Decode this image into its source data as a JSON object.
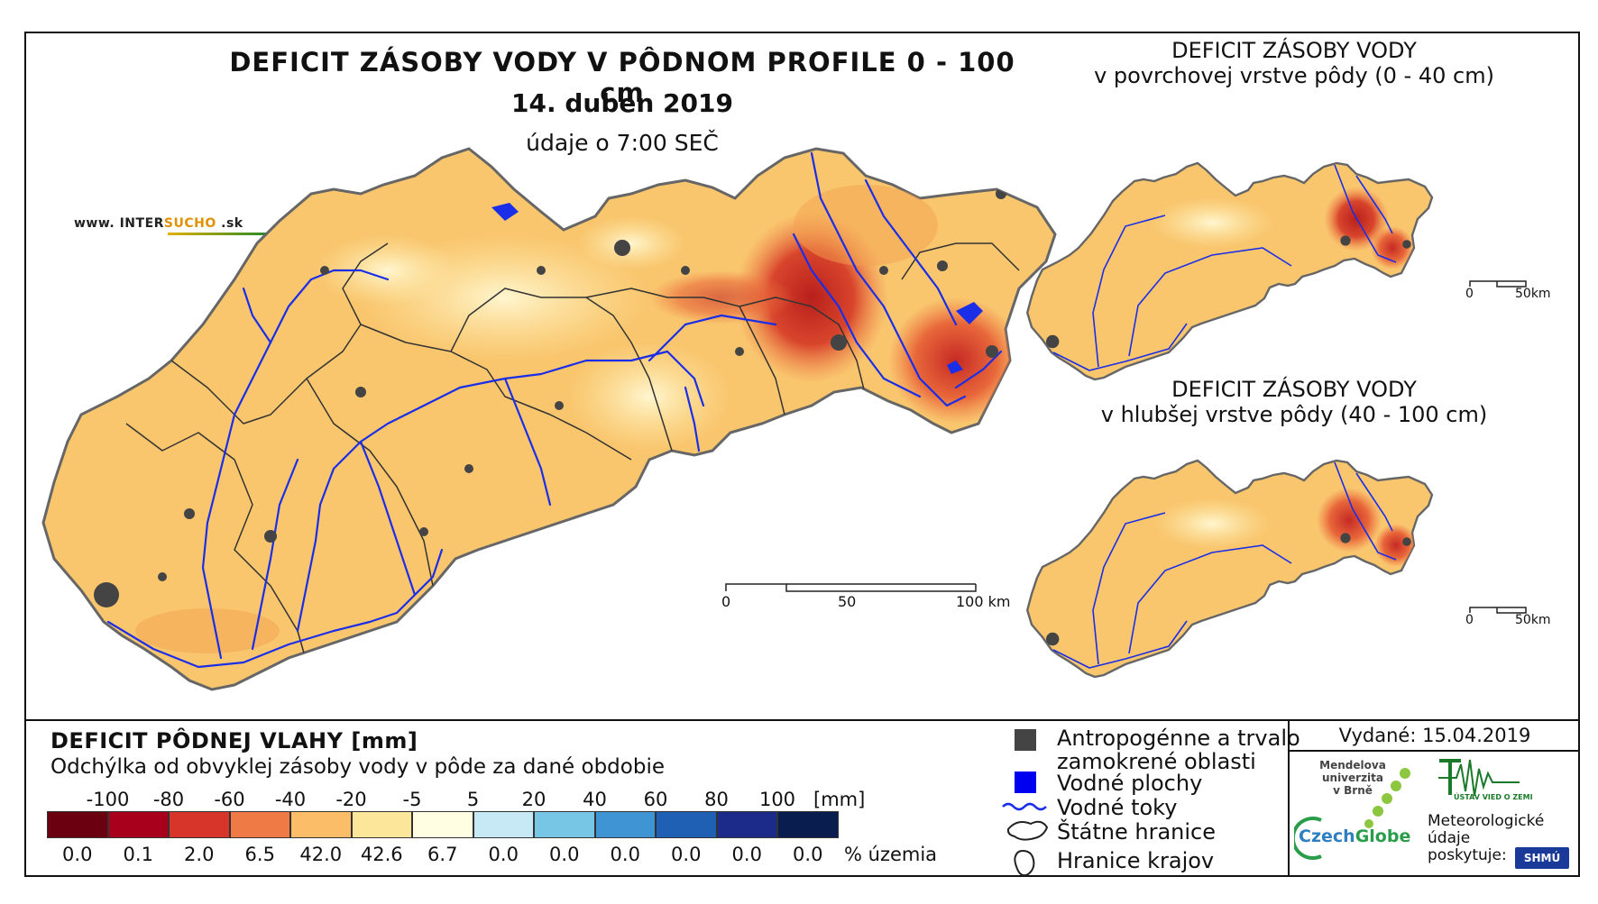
{
  "main": {
    "title": "DEFICIT ZÁSOBY VODY V PÔDNOM PROFILE 0 - 100 cm",
    "date": "14. duben 2019",
    "time": "údaje o 7:00 SEČ",
    "website_prefix": "www. INTER",
    "website_brand": "SUCHO",
    "website_suffix": " .sk",
    "scale": {
      "labels": [
        "0",
        "50",
        "100 km"
      ]
    }
  },
  "inset_top": {
    "title_line1": "DEFICIT ZÁSOBY VODY",
    "title_line2": "v povrchovej vrstve pôdy (0 - 40 cm)",
    "scale_labels": [
      "0",
      "50km"
    ]
  },
  "inset_bottom": {
    "title_line1": "DEFICIT ZÁSOBY VODY",
    "title_line2": "v hlubšej vrstve pôdy (40 - 100 cm)",
    "scale_labels": [
      "0",
      "50km"
    ]
  },
  "legend": {
    "title": "DEFICIT PÔDNEJ VLAHY [mm]",
    "subtitle": "Odchýlka od obvyklej zásoby vody v pôde za dané obdobie",
    "unit_mm": "[mm]",
    "unit_pct": "% územia",
    "thresholds": [
      "-100",
      "-80",
      "-60",
      "-40",
      "-20",
      "-5",
      "5",
      "20",
      "40",
      "60",
      "80",
      "100"
    ],
    "classes": [
      {
        "color": "#6b0010",
        "percent": "0.0"
      },
      {
        "color": "#a8001c",
        "percent": "0.1"
      },
      {
        "color": "#d8352a",
        "percent": "2.0"
      },
      {
        "color": "#f07a45",
        "percent": "6.5"
      },
      {
        "color": "#fbbd68",
        "percent": "42.0"
      },
      {
        "color": "#fbe69a",
        "percent": "42.6"
      },
      {
        "color": "#fffde2",
        "percent": "6.7"
      },
      {
        "color": "#c6e9f5",
        "percent": "0.0"
      },
      {
        "color": "#77c6e6",
        "percent": "0.0"
      },
      {
        "color": "#3f95d4",
        "percent": "0.0"
      },
      {
        "color": "#1f5fb4",
        "percent": "0.0"
      },
      {
        "color": "#1c2a8a",
        "percent": "0.0"
      },
      {
        "color": "#0a1d4f",
        "percent": "0.0"
      }
    ]
  },
  "map_legend": {
    "anthropogenic_line1": "Antropogénne a trvalo",
    "anthropogenic_line2": "zamokrené oblasti",
    "water_areas": "Vodné plochy",
    "water_streams": "Vodné toky",
    "state_border": "Štátne hranice",
    "region_border": "Hranice krajov"
  },
  "issued": "Vydané: 15.04.2019",
  "logos": {
    "mendel_line1": "Mendelova",
    "mendel_line2": "univerzita",
    "mendel_line3": "v Brně",
    "czechglobe_a": "Czech",
    "czechglobe_b": "Globe",
    "uvoz": "ÚSTAV VIED O ZEMI",
    "meteo_line1": "Meteorologické",
    "meteo_line2": "údaje",
    "meteo_line3": "poskytuje:",
    "shmu": "SHMÚ"
  },
  "colors": {
    "map_fill": "#f9c66e",
    "map_light": "#fde8a5",
    "deficit_mid": "#e8673a",
    "deficit_high": "#c9302a",
    "rivers": "#1a2ee8",
    "urban": "#444444",
    "border": "#222222"
  }
}
